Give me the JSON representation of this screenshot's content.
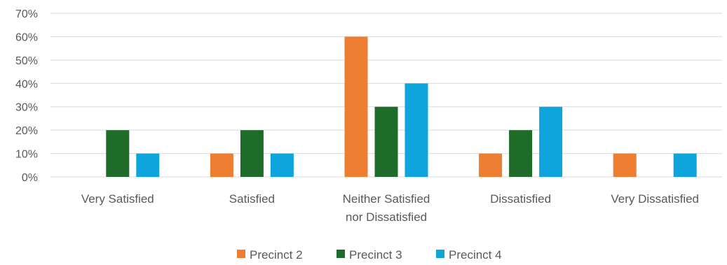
{
  "chart_data": {
    "type": "bar",
    "categories": [
      [
        "Very Satisfied"
      ],
      [
        "Satisfied"
      ],
      [
        "Neither Satisfied",
        "nor Dissatisfied"
      ],
      [
        "Dissatisfied"
      ],
      [
        "Very Dissatisfied"
      ]
    ],
    "series": [
      {
        "name": "Precinct 2",
        "color": "#ed7d31",
        "values": [
          0,
          10,
          60,
          10,
          10
        ]
      },
      {
        "name": "Precinct 3",
        "color": "#1e6b2a",
        "values": [
          20,
          20,
          30,
          20,
          0
        ]
      },
      {
        "name": "Precinct 4",
        "color": "#0ea5dc",
        "values": [
          10,
          10,
          40,
          30,
          10
        ]
      }
    ],
    "y_ticks": [
      "0%",
      "10%",
      "20%",
      "30%",
      "40%",
      "50%",
      "60%",
      "70%"
    ],
    "ylim": [
      0,
      70
    ],
    "grid": true,
    "legend_position": "bottom"
  }
}
